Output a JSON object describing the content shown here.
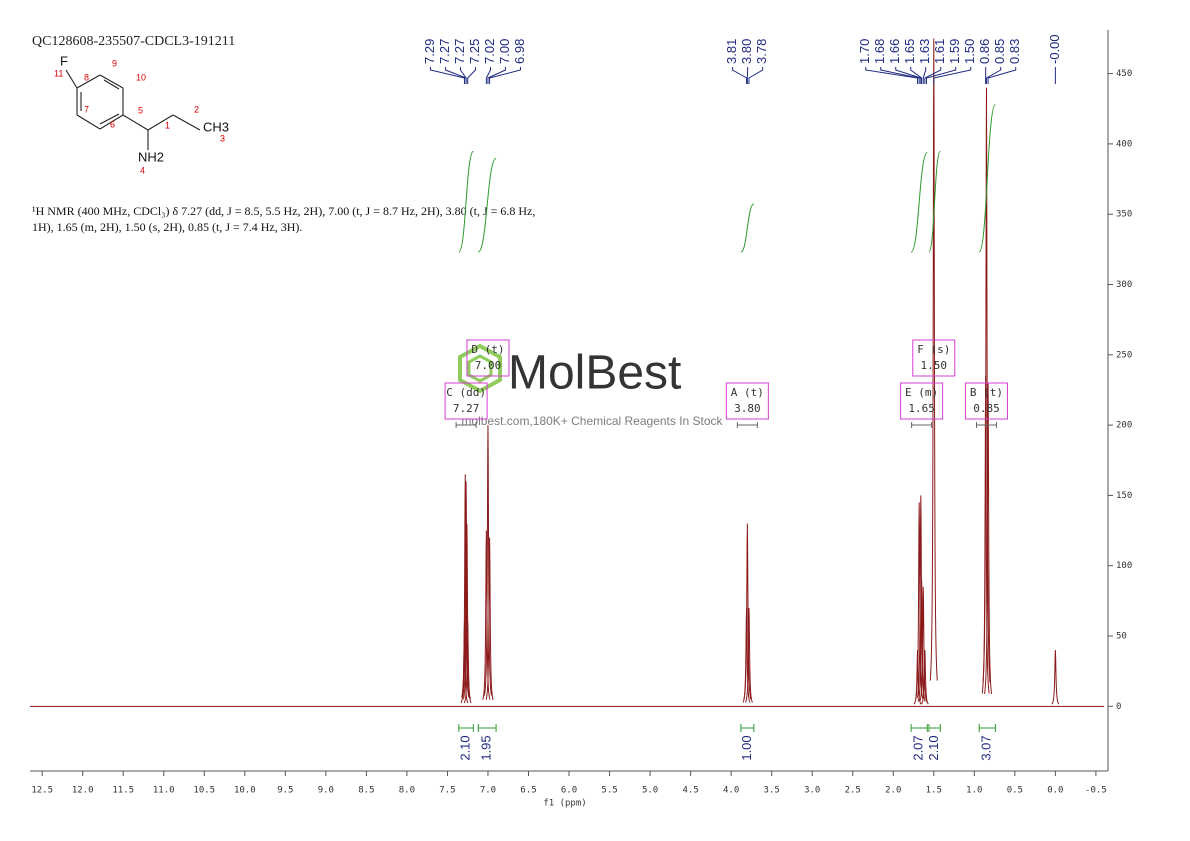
{
  "chart_data": {
    "type": "nmr",
    "title": "QC128608-235507-CDCL3-191211",
    "description": [
      "¹H NMR (400 MHz, CDCl₃) δ 7.27 (dd, J = 8.5, 5.5 Hz, 2H), 7.00 (t, J = 8.7 Hz, 2H), 3.80 (t, J = 6.8 Hz,",
      "1H), 1.65 (m, 2H), 1.50 (s, 2H), 0.85 (t, J = 7.4 Hz, 3H)."
    ],
    "xlabel": "f1 (ppm)",
    "xlim": [
      12.65,
      -0.6
    ],
    "xticks": [
      12.5,
      {
        "value": 12,
        "label": "12.0"
      },
      11.5,
      {
        "value": 11,
        "label": "11.0"
      },
      10.5,
      {
        "value": 10,
        "label": "10.0"
      },
      9.5,
      {
        "value": 9,
        "label": "9.0"
      },
      8.5,
      {
        "value": 8,
        "label": "8.0"
      },
      7.5,
      {
        "value": 7,
        "label": "7.0"
      },
      6.5,
      {
        "value": 6,
        "label": "6.0"
      },
      5.5,
      {
        "value": 5,
        "label": "5.0"
      },
      4.5,
      {
        "value": 4,
        "label": "4.0"
      },
      3.5,
      {
        "value": 3,
        "label": "3.0"
      },
      2.5,
      {
        "value": 2,
        "label": "2.0"
      },
      1.5,
      {
        "value": 1,
        "label": "1.0"
      },
      0.5,
      {
        "value": 0,
        "label": "0.0"
      },
      -0.5
    ],
    "ylim": [
      -46,
      481
    ],
    "yticks": [
      0,
      50,
      100,
      150,
      200,
      250,
      300,
      350,
      400,
      450
    ],
    "color": "#8b1a1a",
    "label_color": "#1f2a80",
    "integral_color": "#2e9a2e",
    "multiplet_color": "#d43fd4",
    "peaks": {
      "x": [
        7.29,
        7.28,
        7.27,
        7.26,
        7.25,
        7.02,
        7.0,
        6.98,
        3.81,
        3.8,
        3.78,
        1.7,
        1.68,
        1.66,
        1.65,
        1.63,
        1.61,
        1.5,
        0.86,
        0.85,
        0.83,
        0.0
      ],
      "values": [
        60,
        165,
        160,
        130,
        60,
        125,
        200,
        120,
        70,
        130,
        70,
        40,
        145,
        150,
        90,
        85,
        40,
        475,
        235,
        440,
        230,
        40
      ]
    },
    "peak_labels": [
      7.29,
      7.27,
      7.27,
      7.25,
      7.02,
      {
        "value": 7,
        "label": "7.00"
      },
      6.98,
      3.81,
      {
        "value": 3.8,
        "label": "3.80"
      },
      3.78,
      {
        "value": 1.7,
        "label": "1.70"
      },
      1.68,
      1.66,
      1.65,
      1.63,
      1.61,
      1.59,
      {
        "value": 1.5,
        "label": "1.50"
      },
      0.86,
      0.85,
      0.83,
      {
        "value": 0,
        "label": "-0.00"
      }
    ],
    "integrals": [
      {
        "value": 2.1,
        "label": "2.10",
        "range": [
          7.36,
          7.18
        ]
      },
      {
        "value": 1.95,
        "label": "1.95",
        "range": [
          7.12,
          6.9
        ]
      },
      {
        "value": 1,
        "label": "1.00",
        "range": [
          3.88,
          3.72
        ]
      },
      {
        "value": 2.07,
        "label": "2.07",
        "range": [
          1.78,
          1.58
        ]
      },
      {
        "value": 2.1,
        "label": "2.10",
        "range": [
          1.56,
          1.42
        ]
      },
      {
        "value": 3.07,
        "label": "3.07",
        "range": [
          0.94,
          0.74
        ]
      }
    ],
    "multiplets": [
      {
        "name": "C (dd)",
        "shift": 7.27
      },
      {
        "name": "D (t)",
        "shift": {
          "value": 7,
          "label": "7.00"
        }
      },
      {
        "name": "A (t)",
        "shift": {
          "value": 3.8,
          "label": "3.80"
        }
      },
      {
        "name": "E (m)",
        "shift": 1.65
      },
      {
        "name": "F (s)",
        "shift": {
          "value": 1.5,
          "label": "1.50"
        }
      },
      {
        "name": "B (t)",
        "shift": 0.85
      }
    ],
    "watermark": {
      "logo": "MolBest",
      "tagline": "molbest.com,180K+ Chemical Reagents In Stock"
    }
  },
  "structure": {
    "labels": [
      "F",
      "11",
      "8",
      "9",
      "10",
      "7",
      "5",
      "6",
      "1",
      "2",
      "CH3",
      "3",
      "NH2",
      "4"
    ]
  }
}
